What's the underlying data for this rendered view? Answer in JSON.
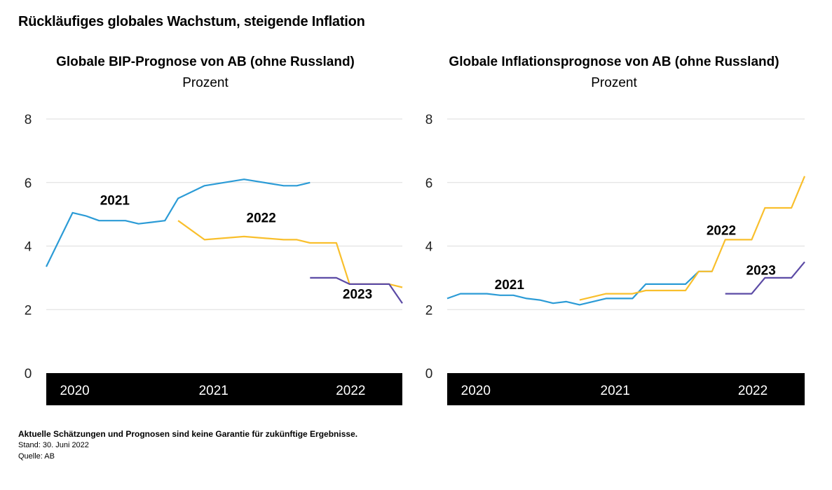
{
  "page": {
    "title": "Rückläufiges globales Wachstum, steigende Inflation",
    "footer": {
      "disclaimer": "Aktuelle Schätzungen und Prognosen sind keine Garantie für zukünftige Ergebnisse.",
      "date": "Stand: 30. Juni 2022",
      "source": "Quelle: AB"
    },
    "colors": {
      "s2021": "#2b9bd6",
      "s2022": "#f9bf2c",
      "s2023": "#5b4aa5",
      "axis_bar": "#000000",
      "grid": "#dddddd"
    }
  },
  "chart_data": [
    {
      "type": "line",
      "title": "Globale BIP-Prognose von AB (ohne Russland)",
      "subtitle": "Prozent",
      "xlabel": "",
      "ylabel": "Prozent",
      "ylim": [
        0,
        8
      ],
      "yticks": [
        0,
        2,
        4,
        6,
        8
      ],
      "xticks": [
        "2020",
        "2021",
        "2022"
      ],
      "x_note": "monthly forecast dates, index 0 = early 2020",
      "xlim": [
        0,
        27
      ],
      "grid": true,
      "series": [
        {
          "name": "2021",
          "label_pos": [
            5.2,
            5.3
          ],
          "x": [
            0,
            1,
            2,
            3,
            4,
            5,
            6,
            7,
            8,
            9,
            10,
            12,
            15,
            18,
            19,
            20
          ],
          "values": [
            3.35,
            4.2,
            5.05,
            4.95,
            4.8,
            4.8,
            4.8,
            4.7,
            4.75,
            4.8,
            5.5,
            5.9,
            6.1,
            5.9,
            5.9,
            6.0
          ]
        },
        {
          "name": "2022",
          "label_pos": [
            16.3,
            4.75
          ],
          "x": [
            10,
            12,
            15,
            18,
            19,
            20,
            22,
            23,
            26,
            27
          ],
          "values": [
            4.8,
            4.2,
            4.3,
            4.2,
            4.2,
            4.1,
            4.1,
            2.8,
            2.8,
            2.7
          ]
        },
        {
          "name": "2023",
          "label_pos": [
            23.6,
            2.35
          ],
          "x": [
            20,
            22,
            23,
            26,
            27
          ],
          "values": [
            3.0,
            3.0,
            2.8,
            2.8,
            2.2
          ]
        }
      ]
    },
    {
      "type": "line",
      "title": "Globale Inflationsprognose von AB (ohne Russland)",
      "subtitle": "Prozent",
      "xlabel": "",
      "ylabel": "Prozent",
      "ylim": [
        0,
        8
      ],
      "yticks": [
        0,
        2,
        4,
        6,
        8
      ],
      "xticks": [
        "2020",
        "2021",
        "2022"
      ],
      "x_note": "monthly forecast dates, index 0 = early 2020",
      "xlim": [
        0,
        27
      ],
      "grid": true,
      "series": [
        {
          "name": "2021",
          "label_pos": [
            4.7,
            2.65
          ],
          "x": [
            0,
            1,
            3,
            4,
            5,
            6,
            7,
            8,
            9,
            10,
            11,
            12,
            14,
            15,
            16,
            18,
            19,
            20
          ],
          "values": [
            2.35,
            2.5,
            2.5,
            2.45,
            2.45,
            2.35,
            2.3,
            2.2,
            2.25,
            2.15,
            2.25,
            2.35,
            2.35,
            2.8,
            2.8,
            2.8,
            3.2,
            3.2
          ]
        },
        {
          "name": "2022",
          "label_pos": [
            20.7,
            4.35
          ],
          "x": [
            10,
            12,
            14,
            15,
            18,
            19,
            20,
            21,
            23,
            24,
            26,
            27
          ],
          "values": [
            2.3,
            2.5,
            2.5,
            2.6,
            2.6,
            3.2,
            3.2,
            4.2,
            4.2,
            5.2,
            5.2,
            6.2
          ]
        },
        {
          "name": "2023",
          "label_pos": [
            23.7,
            3.1
          ],
          "x": [
            21,
            23,
            24,
            26,
            27
          ],
          "values": [
            2.5,
            2.5,
            3.0,
            3.0,
            3.5
          ]
        }
      ]
    }
  ]
}
